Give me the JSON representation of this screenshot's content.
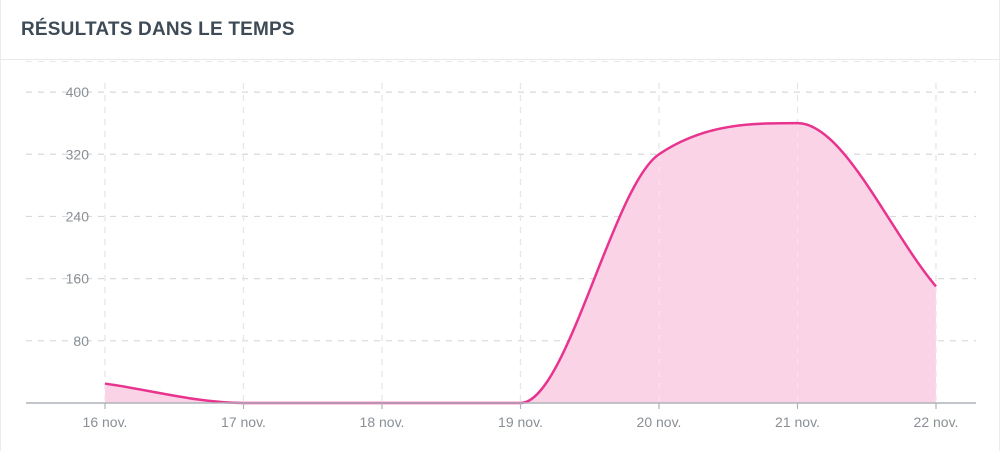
{
  "header": {
    "title": "RÉSULTATS DANS LE TEMPS"
  },
  "colors": {
    "line": "#e8338f",
    "fill": "#fbd3e6",
    "grid": "#d9d9d9",
    "axis": "#aeb3b8",
    "tick_text": "#8a8f95",
    "title_text": "#3e4b57"
  },
  "chart_data": {
    "type": "area",
    "title": "",
    "xlabel": "",
    "ylabel": "",
    "categories": [
      "16 nov.",
      "17 nov.",
      "18 nov.",
      "19 nov.",
      "20 nov.",
      "21 nov.",
      "22 nov."
    ],
    "series": [
      {
        "values": [
          25,
          0,
          0,
          0,
          320,
          360,
          150
        ]
      }
    ],
    "y_ticks": [
      80,
      160,
      240,
      320,
      400
    ],
    "ylim": [
      0,
      440
    ],
    "grid": true,
    "legend": "none",
    "smooth": true
  }
}
